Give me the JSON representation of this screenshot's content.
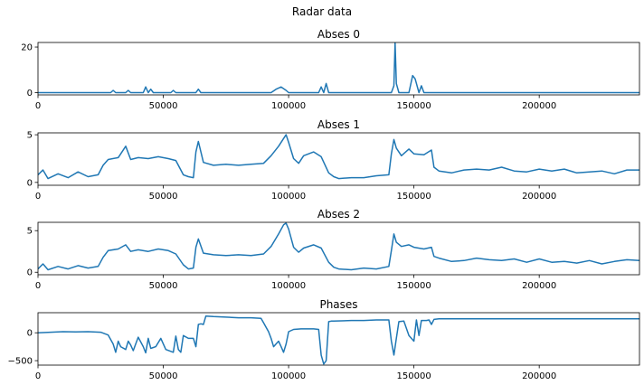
{
  "figure": {
    "title": "Radar data"
  },
  "chart_data": [
    {
      "type": "line",
      "title": "Abses 0",
      "xlim": [
        0,
        240000
      ],
      "ylim": [
        -1,
        22
      ],
      "xticks": [
        0,
        50000,
        100000,
        150000,
        200000
      ],
      "yticks": [
        0,
        20
      ],
      "series": [
        {
          "color": "#1f77b4",
          "x": [
            0,
            29000,
            30000,
            31000,
            35000,
            36000,
            37000,
            42000,
            43000,
            44000,
            45000,
            46000,
            53000,
            54000,
            55000,
            63000,
            64000,
            65000,
            93000,
            95000,
            97000,
            99000,
            100000,
            112000,
            113000,
            114000,
            115000,
            116000,
            141000,
            142000,
            142500,
            143000,
            144000,
            148000,
            149500,
            150500,
            152000,
            153000,
            154000,
            155000,
            160000,
            240000
          ],
          "y": [
            0,
            0,
            1,
            0,
            0,
            1,
            0,
            0,
            2.5,
            0,
            1.5,
            0,
            0,
            1,
            0,
            0,
            1.5,
            0,
            0,
            1.5,
            2.5,
            1,
            0,
            0,
            2.5,
            0,
            4,
            0,
            0,
            3,
            22,
            4,
            0,
            0,
            7.5,
            6,
            0,
            3,
            0,
            0,
            0,
            0
          ]
        }
      ]
    },
    {
      "type": "line",
      "title": "Abses 1",
      "xlim": [
        0,
        240000
      ],
      "ylim": [
        -0.3,
        5.2
      ],
      "xticks": [
        0,
        50000,
        100000,
        150000,
        200000
      ],
      "yticks": [
        0,
        5
      ],
      "series": [
        {
          "color": "#1f77b4",
          "x": [
            0,
            2000,
            4000,
            8000,
            12000,
            16000,
            20000,
            24000,
            26000,
            28000,
            32000,
            35000,
            37000,
            40000,
            44000,
            48000,
            52000,
            55000,
            58000,
            60000,
            62000,
            63000,
            64000,
            66000,
            70000,
            75000,
            80000,
            85000,
            90000,
            93000,
            96000,
            98000,
            99000,
            100000,
            102000,
            104000,
            106000,
            110000,
            113000,
            116000,
            118000,
            120000,
            125000,
            130000,
            135000,
            140000,
            141000,
            142000,
            143000,
            145000,
            148000,
            150000,
            154000,
            157000,
            158000,
            160000,
            165000,
            170000,
            175000,
            180000,
            185000,
            190000,
            195000,
            200000,
            205000,
            210000,
            215000,
            220000,
            225000,
            230000,
            235000,
            240000
          ],
          "y": [
            0.8,
            1.3,
            0.4,
            0.9,
            0.5,
            1.1,
            0.6,
            0.8,
            1.8,
            2.4,
            2.6,
            3.8,
            2.4,
            2.6,
            2.5,
            2.7,
            2.5,
            2.3,
            0.8,
            0.6,
            0.5,
            3.2,
            4.3,
            2.1,
            1.8,
            1.9,
            1.8,
            1.9,
            2.0,
            2.8,
            3.8,
            4.6,
            5.0,
            4.2,
            2.5,
            2.0,
            2.8,
            3.2,
            2.7,
            1.0,
            0.6,
            0.4,
            0.5,
            0.5,
            0.7,
            0.8,
            3.0,
            4.5,
            3.6,
            2.8,
            3.5,
            3.0,
            2.9,
            3.4,
            1.6,
            1.2,
            1.0,
            1.3,
            1.4,
            1.3,
            1.6,
            1.2,
            1.1,
            1.4,
            1.2,
            1.4,
            1.0,
            1.1,
            1.2,
            0.9,
            1.3,
            1.3
          ]
        }
      ]
    },
    {
      "type": "line",
      "title": "Abses 2",
      "xlim": [
        0,
        240000
      ],
      "ylim": [
        -0.3,
        6.0
      ],
      "xticks": [
        0,
        50000,
        100000,
        150000,
        200000
      ],
      "yticks": [
        0,
        5
      ],
      "series": [
        {
          "color": "#1f77b4",
          "x": [
            0,
            2000,
            4000,
            8000,
            12000,
            16000,
            20000,
            24000,
            26000,
            28000,
            32000,
            35000,
            37000,
            40000,
            44000,
            48000,
            52000,
            55000,
            58000,
            60000,
            62000,
            63000,
            64000,
            66000,
            70000,
            75000,
            80000,
            85000,
            90000,
            93000,
            96000,
            98000,
            99000,
            100000,
            102000,
            104000,
            106000,
            110000,
            113000,
            116000,
            118000,
            120000,
            125000,
            130000,
            135000,
            140000,
            141000,
            142000,
            143000,
            145000,
            148000,
            150000,
            154000,
            157000,
            158000,
            160000,
            165000,
            170000,
            175000,
            180000,
            185000,
            190000,
            195000,
            200000,
            205000,
            210000,
            215000,
            220000,
            225000,
            230000,
            235000,
            240000
          ],
          "y": [
            0.4,
            1.0,
            0.3,
            0.7,
            0.4,
            0.8,
            0.5,
            0.7,
            1.8,
            2.6,
            2.8,
            3.3,
            2.5,
            2.7,
            2.5,
            2.8,
            2.6,
            2.2,
            0.9,
            0.4,
            0.5,
            3.0,
            4.0,
            2.3,
            2.1,
            2.0,
            2.1,
            2.0,
            2.2,
            3.1,
            4.6,
            5.7,
            5.9,
            5.2,
            3.0,
            2.4,
            2.9,
            3.3,
            2.9,
            1.2,
            0.6,
            0.4,
            0.3,
            0.5,
            0.4,
            0.7,
            2.6,
            4.6,
            3.6,
            3.1,
            3.3,
            3.0,
            2.8,
            3.0,
            1.9,
            1.7,
            1.3,
            1.4,
            1.7,
            1.5,
            1.4,
            1.6,
            1.2,
            1.6,
            1.2,
            1.3,
            1.1,
            1.4,
            1.0,
            1.3,
            1.5,
            1.4
          ]
        }
      ]
    },
    {
      "type": "line",
      "title": "Phases",
      "xlim": [
        0,
        240000
      ],
      "ylim": [
        -580,
        360
      ],
      "xticks": [
        0,
        50000,
        100000,
        150000,
        200000
      ],
      "yticks": [
        0,
        -500
      ],
      "series": [
        {
          "color": "#1f77b4",
          "x": [
            0,
            5000,
            10000,
            15000,
            20000,
            25000,
            28000,
            30000,
            31000,
            32000,
            33000,
            35000,
            36000,
            37000,
            38000,
            40000,
            42000,
            43000,
            44000,
            45000,
            47000,
            49000,
            51000,
            54000,
            55000,
            56000,
            57000,
            58000,
            60000,
            62000,
            63000,
            64000,
            65000,
            66000,
            67000,
            70000,
            75000,
            80000,
            85000,
            89000,
            90000,
            91000,
            92000,
            93000,
            94000,
            96000,
            97000,
            98000,
            99000,
            100000,
            102000,
            105000,
            110000,
            112000,
            113000,
            114000,
            115000,
            116000,
            117000,
            118000,
            125000,
            130000,
            135000,
            140000,
            141000,
            142000,
            143000,
            144000,
            146000,
            148000,
            150000,
            151000,
            152000,
            153000,
            155000,
            156000,
            157000,
            158000,
            160000,
            180000,
            200000,
            220000,
            240000
          ],
          "y": [
            0,
            10,
            20,
            15,
            20,
            10,
            -40,
            -200,
            -350,
            -150,
            -250,
            -300,
            -150,
            -220,
            -320,
            -80,
            -250,
            -360,
            -100,
            -280,
            -250,
            -100,
            -300,
            -350,
            -60,
            -300,
            -350,
            -50,
            -100,
            -100,
            -250,
            150,
            160,
            150,
            300,
            290,
            280,
            270,
            270,
            260,
            180,
            100,
            20,
            -100,
            -250,
            -150,
            -250,
            -350,
            -200,
            20,
            60,
            70,
            70,
            60,
            -400,
            -560,
            -500,
            200,
            210,
            210,
            220,
            220,
            230,
            230,
            -150,
            -400,
            -100,
            200,
            210,
            -50,
            -150,
            230,
            -50,
            220,
            220,
            230,
            150,
            240,
            250,
            250,
            250,
            250,
            250
          ]
        }
      ]
    }
  ]
}
